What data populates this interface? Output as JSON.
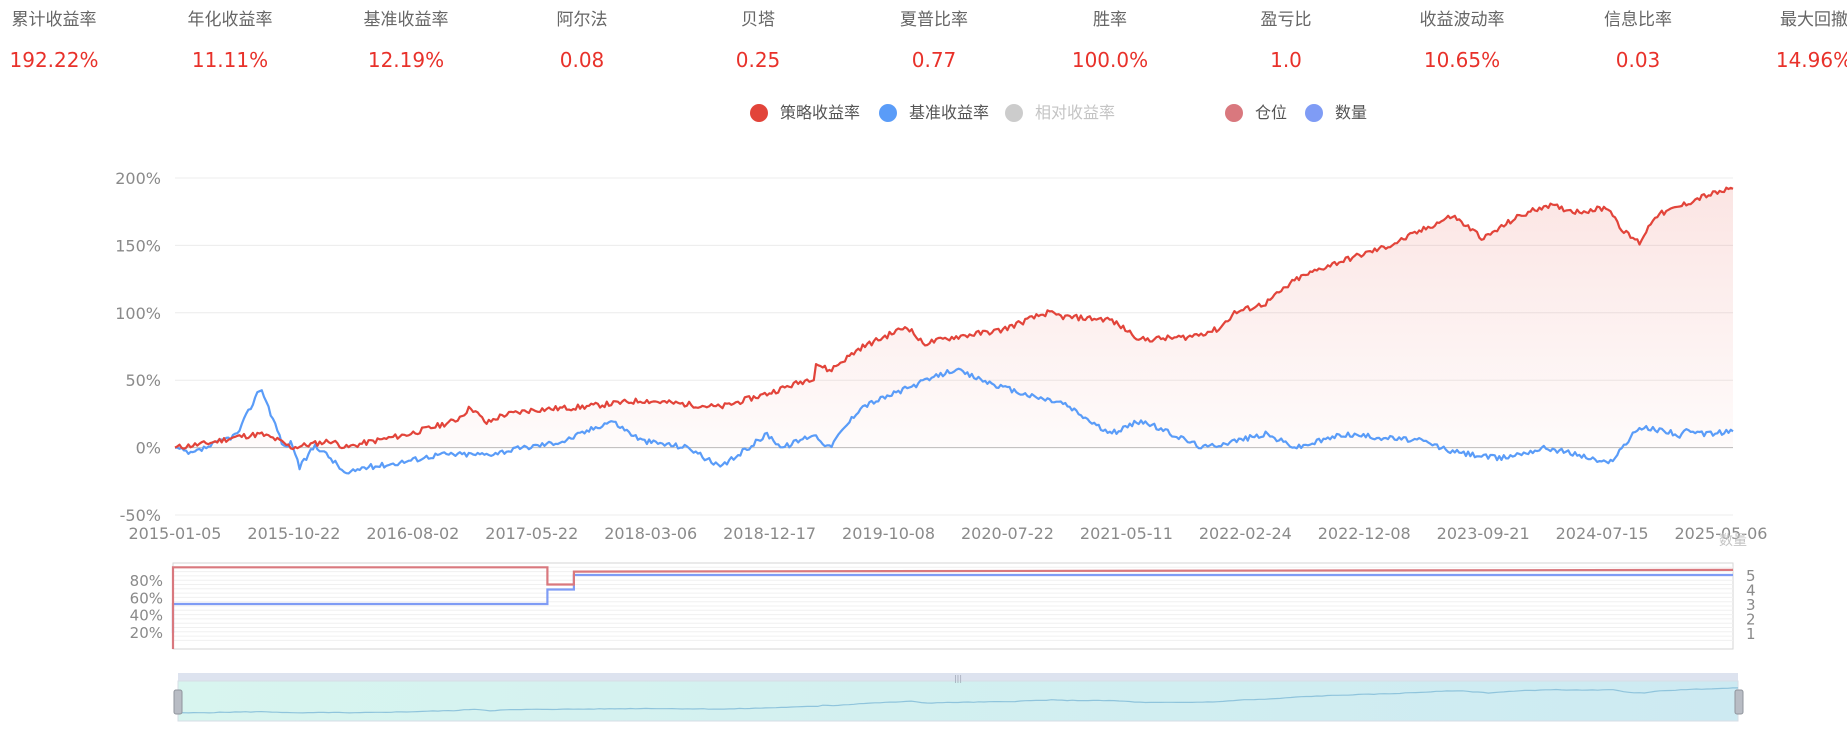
{
  "metrics": [
    {
      "label": "累计收益率",
      "value": "192.22%"
    },
    {
      "label": "年化收益率",
      "value": "11.11%"
    },
    {
      "label": "基准收益率",
      "value": "12.19%"
    },
    {
      "label": "阿尔法",
      "value": "0.08"
    },
    {
      "label": "贝塔",
      "value": "0.25"
    },
    {
      "label": "夏普比率",
      "value": "0.77"
    },
    {
      "label": "胜率",
      "value": "100.0%"
    },
    {
      "label": "盈亏比",
      "value": "1.0"
    },
    {
      "label": "收益波动率",
      "value": "10.65%"
    },
    {
      "label": "信息比率",
      "value": "0.03"
    },
    {
      "label": "最大回撤",
      "value": "14.96%"
    }
  ],
  "legend": [
    {
      "label": "策略收益率",
      "color": "#e2443a",
      "active": true
    },
    {
      "label": "基准收益率",
      "color": "#5a9cf8",
      "active": true
    },
    {
      "label": "相对收益率",
      "color": "#cccccc",
      "active": false
    },
    {
      "label": "仓位",
      "color": "#d9787e",
      "active": true
    },
    {
      "label": "数量",
      "color": "#7f9cf5",
      "active": true
    }
  ],
  "chart_data": [
    {
      "type": "line",
      "title": "",
      "ylim": [
        -50,
        200
      ],
      "y_ticks": [
        "200%",
        "150%",
        "100%",
        "50%",
        "0%",
        "-50%"
      ],
      "x_ticks": [
        "2015-01-05",
        "2015-10-22",
        "2016-08-02",
        "2017-05-22",
        "2018-03-06",
        "2018-12-17",
        "2019-10-08",
        "2020-07-22",
        "2021-05-11",
        "2022-02-24",
        "2022-12-08",
        "2023-09-21",
        "2024-07-15",
        "2025-05-06"
      ],
      "series": [
        {
          "name": "策略收益率",
          "color": "#e2443a",
          "x": [
            0,
            0.02,
            0.04,
            0.055,
            0.065,
            0.075,
            0.1,
            0.11,
            0.12,
            0.15,
            0.18,
            0.19,
            0.2,
            0.21,
            0.23,
            0.26,
            0.3,
            0.35,
            0.38,
            0.41,
            0.4,
            0.42,
            0.44,
            0.47,
            0.48,
            0.5,
            0.53,
            0.55,
            0.56,
            0.57,
            0.6,
            0.615,
            0.62,
            0.65,
            0.67,
            0.68,
            0.7,
            0.72,
            0.74,
            0.78,
            0.82,
            0.84,
            0.86,
            0.88,
            0.9,
            0.92,
            0.93,
            0.94,
            0.95,
            0.96,
            0.97,
            0.98,
            1.0
          ],
          "values": [
            0,
            3,
            8,
            10,
            6,
            0,
            5,
            0,
            3,
            10,
            20,
            30,
            18,
            24,
            28,
            30,
            35,
            30,
            40,
            52,
            70,
            57,
            74,
            90,
            77,
            82,
            87,
            96,
            100,
            97,
            95,
            84,
            80,
            82,
            88,
            100,
            107,
            125,
            135,
            150,
            172,
            155,
            170,
            180,
            175,
            178,
            160,
            152,
            172,
            176,
            181,
            186,
            192
          ]
        },
        {
          "name": "基准收益率",
          "color": "#5a9cf8",
          "x": [
            0,
            0.01,
            0.02,
            0.04,
            0.055,
            0.06,
            0.07,
            0.075,
            0.08,
            0.09,
            0.1,
            0.11,
            0.12,
            0.14,
            0.17,
            0.2,
            0.25,
            0.28,
            0.3,
            0.33,
            0.35,
            0.38,
            0.39,
            0.4,
            0.41,
            0.42,
            0.44,
            0.47,
            0.5,
            0.53,
            0.55,
            0.57,
            0.6,
            0.62,
            0.64,
            0.66,
            0.7,
            0.72,
            0.75,
            0.8,
            0.82,
            0.85,
            0.88,
            0.9,
            0.92,
            0.94,
            0.96,
            0.965,
            0.97,
            0.98,
            1.0
          ],
          "values": [
            0,
            -5,
            0,
            10,
            45,
            30,
            0,
            4,
            -15,
            2,
            -8,
            -20,
            -15,
            -12,
            -5,
            -5,
            5,
            20,
            5,
            0,
            -15,
            10,
            0,
            5,
            10,
            0,
            30,
            44,
            58,
            45,
            38,
            33,
            10,
            20,
            10,
            0,
            10,
            0,
            10,
            5,
            -3,
            -8,
            0,
            -5,
            -12,
            15,
            12,
            8,
            12,
            10,
            12
          ]
        }
      ]
    },
    {
      "type": "line",
      "title": "",
      "y_ticks_left": [
        "80%",
        "60%",
        "40%",
        "20%"
      ],
      "y_ticks_right": [
        "5",
        "4",
        "3",
        "2",
        "1"
      ],
      "series": [
        {
          "name": "仓位",
          "color": "#d9787e",
          "x": [
            0,
            0.0,
            0.24,
            0.24,
            0.257,
            0.257,
            1.0
          ],
          "values": [
            0,
            95,
            95,
            75,
            75,
            90,
            92
          ]
        },
        {
          "name": "数量",
          "color": "#7f9cf5",
          "x": [
            0,
            0.0,
            0.24,
            0.24,
            0.257,
            0.257,
            1.0
          ],
          "values": [
            0,
            3,
            3,
            4,
            4,
            5,
            5
          ]
        }
      ],
      "right_axis_label": "数量"
    }
  ]
}
